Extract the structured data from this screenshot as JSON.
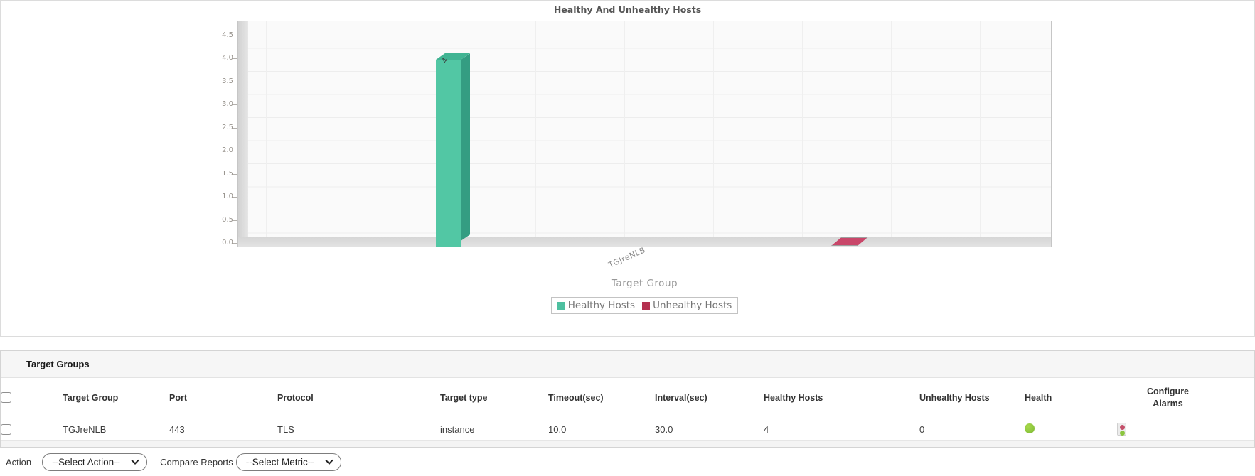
{
  "chart_data": {
    "type": "bar",
    "title": "Healthy And Unhealthy Hosts",
    "categories": [
      "TGJreNLB"
    ],
    "series": [
      {
        "name": "Healthy Hosts",
        "values": [
          4
        ],
        "legend_color": "#4ec0a0",
        "front": "#52c7a4",
        "side": "#349d82",
        "top": "#41b493"
      },
      {
        "name": "Unhealthy Hosts",
        "values": [
          0
        ],
        "legend_color": "#b43150",
        "front": "#c9476a",
        "side": "#a12f4e",
        "top": "#c9476a"
      }
    ],
    "xlabel": "Target Group",
    "ylabel": "",
    "ylim": [
      0,
      4.5
    ],
    "ytick_step": 0.5,
    "grid": true,
    "legend_position": "bottom"
  },
  "table": {
    "section_title": "Target Groups",
    "columns": [
      "Target Group",
      "Port",
      "Protocol",
      "Target type",
      "Timeout(sec)",
      "Interval(sec)",
      "Healthy Hosts",
      "Unhealthy Hosts",
      "Health",
      "Configure Alarms"
    ],
    "rows": [
      {
        "target_group": "TGJreNLB",
        "port": "443",
        "protocol": "TLS",
        "target_type": "instance",
        "timeout_sec": "10.0",
        "interval_sec": "30.0",
        "healthy_hosts": "4",
        "unhealthy_hosts": "0",
        "health": "good"
      }
    ],
    "health_color": "#8dc63f",
    "alarm_icon_colors": {
      "red": "#c4506a",
      "green": "#8bc53f"
    }
  },
  "footer": {
    "action_label": "Action",
    "action_select_value": "--Select Action--",
    "compare_label": "Compare Reports",
    "metric_select_value": "--Select Metric--"
  }
}
